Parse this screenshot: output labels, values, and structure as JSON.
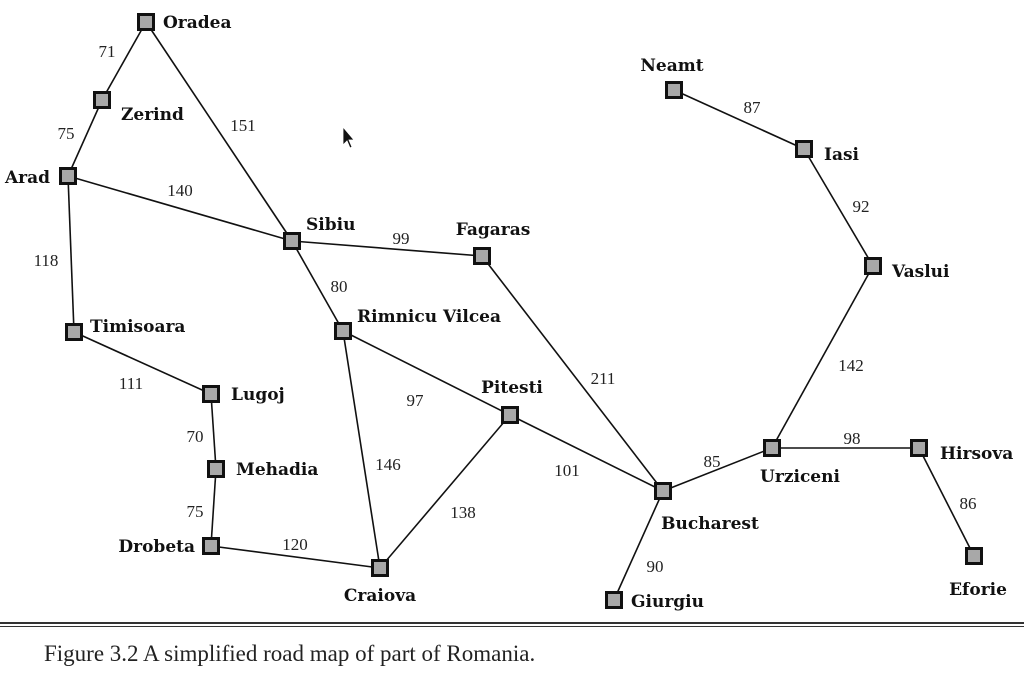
{
  "caption": "Figure 3.2 A simplified road map of part of Romania.",
  "cities": [
    {
      "name": "Oradea"
    },
    {
      "name": "Zerind"
    },
    {
      "name": "Arad"
    },
    {
      "name": "Timisoara"
    },
    {
      "name": "Lugoj"
    },
    {
      "name": "Mehadia"
    },
    {
      "name": "Drobeta"
    },
    {
      "name": "Craiova"
    },
    {
      "name": "Sibiu"
    },
    {
      "name": "Rimnicu Vilcea"
    },
    {
      "name": "Fagaras"
    },
    {
      "name": "Pitesti"
    },
    {
      "name": "Bucharest"
    },
    {
      "name": "Giurgiu"
    },
    {
      "name": "Urziceni"
    },
    {
      "name": "Hirsova"
    },
    {
      "name": "Eforie"
    },
    {
      "name": "Vaslui"
    },
    {
      "name": "Iasi"
    },
    {
      "name": "Neamt"
    }
  ],
  "roads": [
    {
      "from": "Oradea",
      "to": "Zerind",
      "distance": "71"
    },
    {
      "from": "Oradea",
      "to": "Sibiu",
      "distance": "151"
    },
    {
      "from": "Zerind",
      "to": "Arad",
      "distance": "75"
    },
    {
      "from": "Arad",
      "to": "Sibiu",
      "distance": "140"
    },
    {
      "from": "Arad",
      "to": "Timisoara",
      "distance": "118"
    },
    {
      "from": "Timisoara",
      "to": "Lugoj",
      "distance": "111"
    },
    {
      "from": "Lugoj",
      "to": "Mehadia",
      "distance": "70"
    },
    {
      "from": "Mehadia",
      "to": "Drobeta",
      "distance": "75"
    },
    {
      "from": "Drobeta",
      "to": "Craiova",
      "distance": "120"
    },
    {
      "from": "Sibiu",
      "to": "Fagaras",
      "distance": "99"
    },
    {
      "from": "Sibiu",
      "to": "Rimnicu Vilcea",
      "distance": "80"
    },
    {
      "from": "Rimnicu Vilcea",
      "to": "Pitesti",
      "distance": "97"
    },
    {
      "from": "Rimnicu Vilcea",
      "to": "Craiova",
      "distance": "146"
    },
    {
      "from": "Craiova",
      "to": "Pitesti",
      "distance": "138"
    },
    {
      "from": "Pitesti",
      "to": "Bucharest",
      "distance": "101"
    },
    {
      "from": "Fagaras",
      "to": "Bucharest",
      "distance": "211"
    },
    {
      "from": "Bucharest",
      "to": "Giurgiu",
      "distance": "90"
    },
    {
      "from": "Bucharest",
      "to": "Urziceni",
      "distance": "85"
    },
    {
      "from": "Urziceni",
      "to": "Hirsova",
      "distance": "98"
    },
    {
      "from": "Hirsova",
      "to": "Eforie",
      "distance": "86"
    },
    {
      "from": "Urziceni",
      "to": "Vaslui",
      "distance": "142"
    },
    {
      "from": "Vaslui",
      "to": "Iasi",
      "distance": "92"
    },
    {
      "from": "Iasi",
      "to": "Neamt",
      "distance": "87"
    }
  ]
}
